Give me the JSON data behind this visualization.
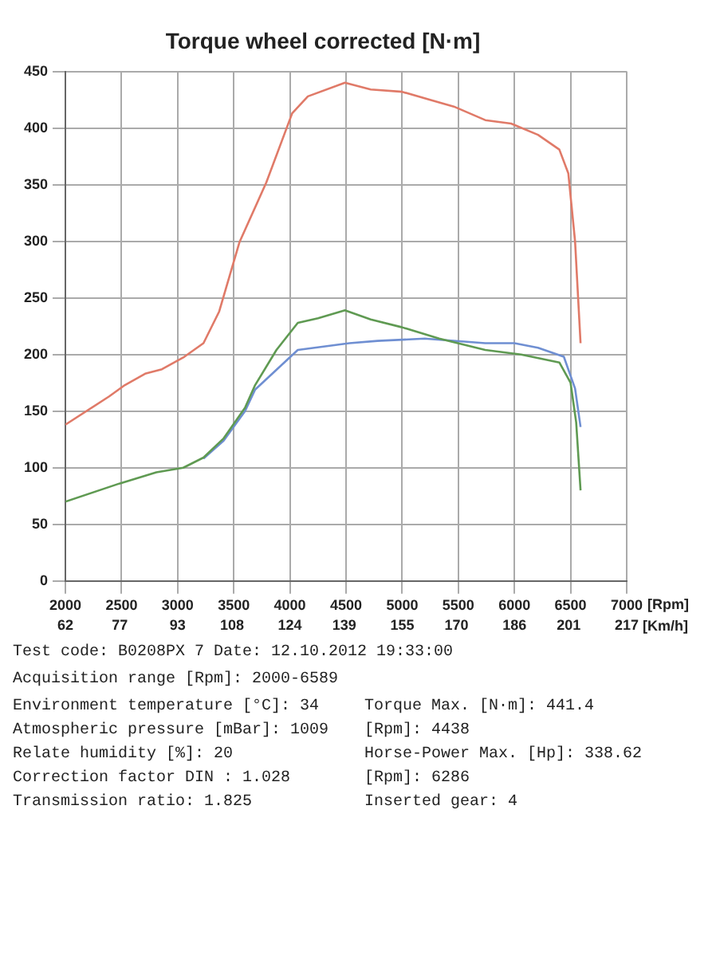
{
  "chart_data": {
    "type": "line",
    "title": "Torque wheel corrected [N·m]",
    "xlim": [
      2000,
      7000
    ],
    "xticks": [
      2000,
      2500,
      3000,
      3500,
      4000,
      4500,
      5000,
      5500,
      6000,
      6500,
      7000
    ],
    "xlabel": "[Rpm]",
    "x2lim": [
      62,
      217
    ],
    "x2ticks": [
      62,
      77,
      93,
      108,
      124,
      139,
      155,
      170,
      186,
      201,
      217
    ],
    "x2label": "[Km/h]",
    "ylim": [
      0,
      450
    ],
    "yticks": [
      0,
      50,
      100,
      150,
      200,
      250,
      300,
      350,
      400,
      450
    ],
    "grid": true,
    "legend": false,
    "marker": "none",
    "line_style": "solid",
    "series": [
      {
        "color": "#e07a68",
        "x": [
          2000,
          2390,
          2530,
          2710,
          2860,
          3060,
          3230,
          3370,
          3550,
          3790,
          4020,
          4160,
          4490,
          4720,
          5000,
          5280,
          5460,
          5740,
          5970,
          6210,
          6400,
          6480,
          6540,
          6589
        ],
        "values": [
          138,
          163,
          173,
          183,
          187,
          198,
          210,
          238,
          299,
          352,
          413,
          428,
          440,
          434,
          432,
          424,
          419,
          407,
          404,
          394,
          381,
          360,
          300,
          210
        ]
      },
      {
        "color": "#5f9a52",
        "x": [
          2000,
          2480,
          2810,
          3050,
          3230,
          3410,
          3600,
          3690,
          3880,
          4070,
          4250,
          4490,
          4720,
          5000,
          5330,
          5740,
          6060,
          6400,
          6500,
          6550,
          6589
        ],
        "values": [
          70,
          86,
          96,
          100,
          109,
          126,
          153,
          173,
          204,
          228,
          232,
          239,
          231,
          224,
          214,
          204,
          200,
          193,
          175,
          140,
          80
        ]
      },
      {
        "color": "#6f8fd2",
        "x": [
          3230,
          3410,
          3600,
          3690,
          4070,
          4530,
          4780,
          5200,
          5740,
          6000,
          6210,
          6440,
          6540,
          6589
        ],
        "values": [
          108,
          124,
          150,
          169,
          204,
          210,
          212,
          214,
          210,
          210,
          206,
          198,
          170,
          136
        ]
      }
    ],
    "annotations": [
      "Test code: B0208PX 7  Date: 12.10.2012 19:33:00",
      "Acquisition range [Rpm]: 2000-6589",
      "Environment temperature [°C]: 34",
      "Torque Max. [N·m]: 441.4",
      "Atmospheric pressure [mBar]: 1009",
      "[Rpm]: 4438",
      "Relate humidity [%]: 20",
      "Horse-Power Max. [Hp]: 338.62",
      "Correction factor DIN : 1.028",
      "[Rpm]: 6286",
      "Transmission ratio: 1.825",
      "Inserted gear: 4"
    ]
  }
}
